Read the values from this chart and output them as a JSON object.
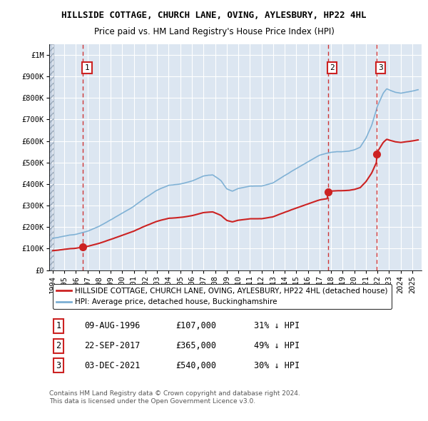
{
  "title": "HILLSIDE COTTAGE, CHURCH LANE, OVING, AYLESBURY, HP22 4HL",
  "subtitle": "Price paid vs. HM Land Registry's House Price Index (HPI)",
  "ylim": [
    0,
    1050000
  ],
  "yticks": [
    0,
    100000,
    200000,
    300000,
    400000,
    500000,
    600000,
    700000,
    800000,
    900000,
    1000000
  ],
  "ytick_labels": [
    "£0",
    "£100K",
    "£200K",
    "£300K",
    "£400K",
    "£500K",
    "£600K",
    "£700K",
    "£800K",
    "£900K",
    "£1M"
  ],
  "xlim_start": 1993.7,
  "xlim_end": 2025.8,
  "hpi_color": "#7bafd4",
  "price_color": "#cc2222",
  "bg_color": "#dce6f1",
  "grid_color": "#ffffff",
  "transactions": [
    {
      "date_num": 1996.61,
      "price": 107000,
      "label": "1"
    },
    {
      "date_num": 2017.73,
      "price": 365000,
      "label": "2"
    },
    {
      "date_num": 2021.92,
      "price": 540000,
      "label": "3"
    }
  ],
  "vline_dates": [
    1996.61,
    2017.73,
    2021.92
  ],
  "label_positions": [
    [
      1996.61,
      940000,
      "1"
    ],
    [
      2017.73,
      940000,
      "2"
    ],
    [
      2021.92,
      940000,
      "3"
    ]
  ],
  "legend_entries": [
    "HILLSIDE COTTAGE, CHURCH LANE, OVING, AYLESBURY, HP22 4HL (detached house)",
    "HPI: Average price, detached house, Buckinghamshire"
  ],
  "table_data": [
    [
      "1",
      "09-AUG-1996",
      "£107,000",
      "31% ↓ HPI"
    ],
    [
      "2",
      "22-SEP-2017",
      "£365,000",
      "49% ↓ HPI"
    ],
    [
      "3",
      "03-DEC-2021",
      "£540,000",
      "30% ↓ HPI"
    ]
  ],
  "footer": "Contains HM Land Registry data © Crown copyright and database right 2024.\nThis data is licensed under the Open Government Licence v3.0.",
  "title_fontsize": 9,
  "subtitle_fontsize": 8.5,
  "tick_fontsize": 7.5,
  "legend_fontsize": 7.5
}
